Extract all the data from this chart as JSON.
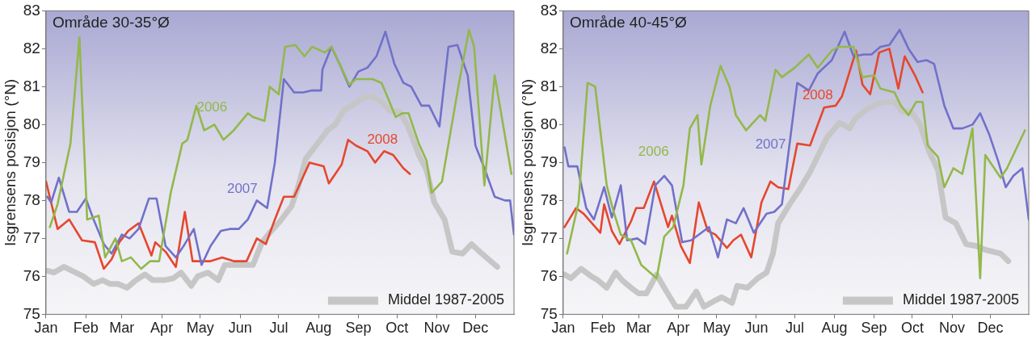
{
  "chart_data": [
    {
      "type": "line",
      "title": "Område 30-35°Ø",
      "ylabel": "Isgrensens posisjon (°N)",
      "legend": "bottom right",
      "xlim": [
        "--01-01",
        "--12-31"
      ],
      "xticks": [
        {
          "value": "--01-01",
          "label": "Jan"
        },
        {
          "value": "--02-01",
          "label": "Feb"
        },
        {
          "value": "--03-01",
          "label": "Mar"
        },
        {
          "value": "--04-01",
          "label": "Apr"
        },
        {
          "value": "--05-01",
          "label": "May"
        },
        {
          "value": "--06-01",
          "label": "Jun"
        },
        {
          "value": "--07-01",
          "label": "Jul"
        },
        {
          "value": "--08-01",
          "label": "Aug"
        },
        {
          "value": "--09-01",
          "label": "Sep"
        },
        {
          "value": "--10-01",
          "label": "Oct"
        },
        {
          "value": "--11-01",
          "label": "Nov"
        },
        {
          "value": "--12-01",
          "label": "Dec"
        }
      ],
      "ylim": [
        75,
        83
      ],
      "yticks": [
        75,
        76,
        77,
        78,
        79,
        80,
        81,
        82,
        83
      ],
      "series": [
        {
          "name": "2006",
          "color": "#93b84a",
          "x": [
            "--01-04",
            "--01-10",
            "--01-20",
            "--01-27",
            "--02-02",
            "--02-11",
            "--02-16",
            "--02-24",
            "--03-01",
            "--03-08",
            "--03-16",
            "--03-23",
            "--03-30",
            "--04-08",
            "--04-17",
            "--04-21",
            "--04-28",
            "--05-04",
            "--05-12",
            "--05-19",
            "--05-27",
            "--06-07",
            "--06-11",
            "--06-20",
            "--06-24",
            "--07-01",
            "--07-06",
            "--07-14",
            "--07-21",
            "--07-27",
            "--08-06",
            "--08-11",
            "--08-25",
            "--08-30",
            "--09-06",
            "--09-12",
            "--09-19",
            "--09-24",
            "--09-30",
            "--10-05",
            "--10-10",
            "--10-18",
            "--10-24",
            "--10-28",
            "--11-05",
            "--11-18",
            "--11-26",
            "--11-30",
            "--12-08",
            "--12-16",
            "--12-29"
          ],
          "values": [
            77.3,
            77.9,
            79.5,
            82.3,
            77.5,
            77.6,
            76.5,
            77.0,
            76.4,
            76.5,
            76.2,
            76.4,
            76.4,
            78.2,
            79.5,
            79.6,
            80.5,
            79.85,
            80.0,
            79.6,
            79.85,
            80.3,
            80.2,
            80.1,
            81.0,
            80.8,
            82.05,
            82.1,
            81.8,
            82.05,
            81.9,
            82.05,
            81.05,
            81.2,
            81.2,
            81.2,
            81.1,
            80.7,
            80.2,
            80.3,
            80.3,
            79.5,
            79.05,
            78.2,
            78.5,
            81.05,
            82.5,
            82.05,
            78.4,
            81.3,
            78.7
          ]
        },
        {
          "name": "2007",
          "color": "#7171c9",
          "x": [
            "--01-02",
            "--01-05",
            "--01-11",
            "--01-19",
            "--01-25",
            "--02-01",
            "--02-07",
            "--02-15",
            "--02-21",
            "--03-01",
            "--03-07",
            "--03-14",
            "--03-22",
            "--03-28",
            "--04-04",
            "--04-12",
            "--04-18",
            "--04-26",
            "--05-02",
            "--05-09",
            "--05-17",
            "--05-24",
            "--05-31",
            "--06-07",
            "--06-14",
            "--06-22",
            "--06-28",
            "--07-05",
            "--07-13",
            "--07-20",
            "--07-27",
            "--08-03",
            "--08-04",
            "--08-11",
            "--08-18",
            "--08-25",
            "--09-01",
            "--09-08",
            "--09-15",
            "--09-22",
            "--09-29",
            "--10-06",
            "--10-12",
            "--10-20",
            "--10-26",
            "--11-03",
            "--11-10",
            "--11-17",
            "--11-25",
            "--12-01",
            "--12-08",
            "--12-16",
            "--12-24",
            "--12-28",
            "--12-31"
          ],
          "values": [
            78.1,
            77.95,
            78.6,
            77.7,
            77.7,
            78.05,
            77.5,
            76.85,
            76.6,
            77.1,
            77.0,
            77.25,
            78.05,
            78.05,
            76.8,
            76.5,
            76.8,
            77.25,
            76.3,
            76.8,
            77.2,
            77.25,
            77.25,
            77.5,
            78.0,
            77.8,
            79.0,
            81.2,
            80.85,
            80.85,
            80.9,
            80.9,
            81.45,
            82.05,
            81.55,
            81.0,
            81.4,
            81.5,
            81.8,
            82.45,
            81.6,
            81.1,
            81.0,
            80.5,
            80.5,
            79.95,
            82.05,
            82.1,
            81.3,
            79.45,
            78.85,
            78.1,
            78.0,
            78.0,
            77.1
          ]
        },
        {
          "name": "2008",
          "color": "#e5472e",
          "x": [
            "--01-01",
            "--01-10",
            "--01-19",
            "--01-29",
            "--02-08",
            "--02-15",
            "--02-21",
            "--02-27",
            "--03-06",
            "--03-14",
            "--03-24",
            "--03-27",
            "--04-04",
            "--04-12",
            "--04-19",
            "--04-25",
            "--05-02",
            "--05-09",
            "--05-18",
            "--05-27",
            "--06-06",
            "--06-14",
            "--06-21",
            "--06-28",
            "--07-05",
            "--07-13",
            "--07-19",
            "--07-25",
            "--08-05",
            "--08-09",
            "--08-19",
            "--08-24",
            "--08-30",
            "--09-08",
            "--09-14",
            "--09-21",
            "--09-28",
            "--10-06",
            "--10-11"
          ],
          "values": [
            78.5,
            77.25,
            77.5,
            76.95,
            76.9,
            76.2,
            76.45,
            76.9,
            77.2,
            77.4,
            76.55,
            76.9,
            76.65,
            76.25,
            77.7,
            76.4,
            76.4,
            76.4,
            76.5,
            76.4,
            76.4,
            77.0,
            76.85,
            77.5,
            78.1,
            78.1,
            78.55,
            79.0,
            78.9,
            78.45,
            78.95,
            79.6,
            79.45,
            79.3,
            79.0,
            79.3,
            79.2,
            78.85,
            78.7
          ]
        },
        {
          "name": "Middel 1987-2005",
          "color": "#c6c6c6",
          "x": [
            "--01-02",
            "--01-07",
            "--01-15",
            "--01-24",
            "--01-30",
            "--02-07",
            "--02-14",
            "--02-20",
            "--02-26",
            "--03-05",
            "--03-12",
            "--03-19",
            "--03-25",
            "--04-03",
            "--04-10",
            "--04-16",
            "--04-24",
            "--04-29",
            "--05-07",
            "--05-15",
            "--05-20",
            "--05-27",
            "--06-05",
            "--06-11",
            "--06-18",
            "--06-24",
            "--07-02",
            "--07-11",
            "--07-16",
            "--07-22",
            "--07-30",
            "--08-08",
            "--08-14",
            "--08-21",
            "--08-27",
            "--09-04",
            "--09-12",
            "--09-19",
            "--09-26",
            "--10-03",
            "--10-09",
            "--10-18",
            "--10-24",
            "--10-30",
            "--11-07",
            "--11-13",
            "--11-21",
            "--11-28",
            "--12-06",
            "--12-18"
          ],
          "values": [
            76.15,
            76.1,
            76.25,
            76.1,
            76.0,
            75.8,
            75.9,
            75.8,
            75.8,
            75.7,
            75.9,
            76.05,
            75.9,
            75.9,
            75.95,
            76.1,
            75.75,
            76.0,
            76.1,
            75.9,
            76.3,
            76.3,
            76.3,
            76.3,
            76.9,
            77.15,
            77.45,
            77.85,
            78.35,
            79.1,
            79.45,
            79.85,
            80.0,
            80.4,
            80.5,
            80.7,
            80.75,
            80.6,
            80.35,
            80.35,
            80.0,
            79.2,
            78.8,
            77.95,
            77.5,
            76.65,
            76.6,
            76.85,
            76.6,
            76.25
          ]
        }
      ]
    },
    {
      "type": "line",
      "title": "Område 40-45°Ø",
      "ylabel": "Isgrensens posisjon (°N)",
      "legend": "bottom right",
      "xlim": [
        "--01-01",
        "--12-31"
      ],
      "xticks": [
        {
          "value": "--01-01",
          "label": "Jan"
        },
        {
          "value": "--02-01",
          "label": "Feb"
        },
        {
          "value": "--03-01",
          "label": "Mar"
        },
        {
          "value": "--04-01",
          "label": "Apr"
        },
        {
          "value": "--05-01",
          "label": "May"
        },
        {
          "value": "--06-01",
          "label": "Jun"
        },
        {
          "value": "--07-01",
          "label": "Jul"
        },
        {
          "value": "--08-01",
          "label": "Aug"
        },
        {
          "value": "--09-01",
          "label": "Sep"
        },
        {
          "value": "--10-01",
          "label": "Oct"
        },
        {
          "value": "--11-01",
          "label": "Nov"
        },
        {
          "value": "--12-01",
          "label": "Dec"
        }
      ],
      "ylim": [
        75,
        83
      ],
      "yticks": [
        75,
        76,
        77,
        78,
        79,
        80,
        81,
        82,
        83
      ],
      "series": [
        {
          "name": "2006",
          "color": "#93b84a",
          "x": [
            "--01-04",
            "--01-13",
            "--01-20",
            "--01-26",
            "--02-04",
            "--02-09",
            "--02-15",
            "--02-23",
            "--03-03",
            "--03-15",
            "--03-21",
            "--03-28",
            "--04-05",
            "--04-10",
            "--04-16",
            "--04-19",
            "--04-26",
            "--05-04",
            "--05-11",
            "--05-16",
            "--05-24",
            "--06-04",
            "--06-08",
            "--06-16",
            "--06-21",
            "--07-01",
            "--07-12",
            "--07-19",
            "--07-30",
            "--08-04",
            "--08-16",
            "--08-23",
            "--09-01",
            "--09-06",
            "--09-17",
            "--09-22",
            "--09-28",
            "--10-04",
            "--10-09",
            "--10-13",
            "--10-21",
            "--10-26",
            "--11-02",
            "--11-09",
            "--11-17",
            "--11-23",
            "--11-27",
            "--12-09",
            "--12-14",
            "--12-28"
          ],
          "values": [
            76.6,
            77.95,
            81.1,
            81.0,
            78.4,
            77.75,
            77.1,
            76.95,
            76.3,
            75.95,
            77.05,
            77.3,
            78.4,
            79.9,
            80.25,
            78.95,
            80.5,
            81.55,
            81.0,
            80.25,
            79.85,
            80.25,
            80.1,
            81.45,
            81.25,
            81.5,
            81.85,
            81.5,
            81.95,
            82.05,
            82.05,
            81.25,
            81.3,
            80.95,
            80.85,
            80.5,
            80.25,
            80.6,
            80.6,
            79.45,
            79.15,
            78.35,
            78.85,
            78.7,
            79.9,
            75.95,
            79.2,
            78.6,
            78.85,
            79.85
          ]
        },
        {
          "name": "2007",
          "color": "#7171c9",
          "x": [
            "--01-02",
            "--01-05",
            "--01-12",
            "--01-19",
            "--01-25",
            "--02-02",
            "--02-08",
            "--02-15",
            "--02-20",
            "--02-28",
            "--03-06",
            "--03-14",
            "--03-21",
            "--03-27",
            "--04-04",
            "--04-11",
            "--04-17",
            "--04-25",
            "--05-02",
            "--05-09",
            "--05-16",
            "--05-22",
            "--05-30",
            "--06-09",
            "--06-15",
            "--06-21",
            "--07-03",
            "--07-12",
            "--07-19",
            "--07-30",
            "--08-09",
            "--08-16",
            "--08-24",
            "--08-30",
            "--09-06",
            "--09-13",
            "--09-21",
            "--09-28",
            "--10-05",
            "--10-12",
            "--10-18",
            "--10-26",
            "--11-02",
            "--11-09",
            "--11-17",
            "--11-23",
            "--11-30",
            "--12-07",
            "--12-13",
            "--12-19",
            "--12-26",
            "--12-31"
          ],
          "values": [
            79.4,
            78.9,
            78.9,
            77.8,
            77.5,
            78.35,
            77.55,
            78.4,
            76.95,
            77.0,
            76.85,
            78.4,
            78.65,
            78.4,
            76.9,
            76.95,
            77.1,
            77.3,
            76.5,
            77.5,
            77.4,
            77.8,
            77.15,
            77.65,
            77.7,
            77.9,
            81.1,
            80.9,
            81.35,
            81.7,
            82.45,
            81.8,
            81.85,
            81.85,
            82.05,
            82.1,
            82.5,
            82.0,
            81.65,
            81.7,
            81.6,
            80.5,
            79.9,
            79.9,
            80.0,
            80.3,
            79.75,
            79.05,
            78.35,
            78.65,
            78.85,
            77.5
          ]
        },
        {
          "name": "2008",
          "color": "#e5472e",
          "x": [
            "--01-02",
            "--01-11",
            "--01-17",
            "--01-30",
            "--02-02",
            "--02-08",
            "--02-14",
            "--02-23",
            "--02-27",
            "--03-05",
            "--03-13",
            "--03-24",
            "--03-27",
            "--04-03",
            "--04-10",
            "--04-17",
            "--04-24",
            "--04-30",
            "--05-09",
            "--05-14",
            "--05-20",
            "--05-28",
            "--06-05",
            "--06-12",
            "--06-18",
            "--06-26",
            "--07-03",
            "--07-13",
            "--07-24",
            "--08-02",
            "--08-07",
            "--08-18",
            "--08-23",
            "--08-29",
            "--09-05",
            "--09-13",
            "--09-20",
            "--09-25",
            "--10-03",
            "--10-09"
          ],
          "values": [
            77.3,
            77.8,
            77.65,
            77.15,
            77.9,
            77.2,
            76.85,
            77.45,
            77.8,
            77.8,
            78.5,
            77.3,
            77.6,
            76.8,
            76.35,
            77.95,
            77.2,
            77.1,
            76.75,
            76.95,
            77.1,
            76.5,
            77.95,
            78.5,
            78.35,
            78.3,
            79.5,
            79.45,
            80.45,
            80.5,
            80.75,
            81.95,
            81.05,
            80.8,
            81.9,
            82.0,
            80.95,
            81.8,
            81.3,
            80.85
          ]
        },
        {
          "name": "Middel 1987-2005",
          "color": "#c6c6c6",
          "x": [
            "--01-02",
            "--01-07",
            "--01-15",
            "--01-23",
            "--01-28",
            "--02-04",
            "--02-11",
            "--02-16",
            "--02-23",
            "--03-01",
            "--03-07",
            "--03-15",
            "--03-21",
            "--03-30",
            "--04-07",
            "--04-15",
            "--04-21",
            "--04-29",
            "--05-05",
            "--05-13",
            "--05-17",
            "--05-25",
            "--06-02",
            "--06-09",
            "--06-14",
            "--06-18",
            "--06-27",
            "--07-05",
            "--07-13",
            "--07-18",
            "--07-26",
            "--08-05",
            "--08-13",
            "--08-17",
            "--08-26",
            "--09-03",
            "--09-11",
            "--09-17",
            "--09-23",
            "--09-30",
            "--10-07",
            "--10-14",
            "--10-21",
            "--10-27",
            "--11-04",
            "--11-12",
            "--11-20",
            "--11-27",
            "--12-09",
            "--12-15"
          ],
          "values": [
            76.05,
            75.95,
            76.2,
            76.0,
            75.9,
            75.7,
            76.1,
            75.9,
            75.7,
            75.55,
            75.55,
            76.05,
            75.7,
            75.2,
            75.2,
            75.6,
            75.2,
            75.35,
            75.45,
            75.3,
            75.75,
            75.7,
            75.95,
            76.1,
            76.6,
            77.4,
            77.9,
            78.3,
            78.75,
            79.1,
            79.65,
            80.05,
            79.9,
            80.15,
            80.4,
            80.55,
            80.6,
            80.6,
            80.35,
            80.35,
            80.0,
            79.3,
            78.8,
            77.55,
            77.4,
            76.85,
            76.8,
            76.7,
            76.6,
            76.4
          ]
        }
      ]
    }
  ]
}
